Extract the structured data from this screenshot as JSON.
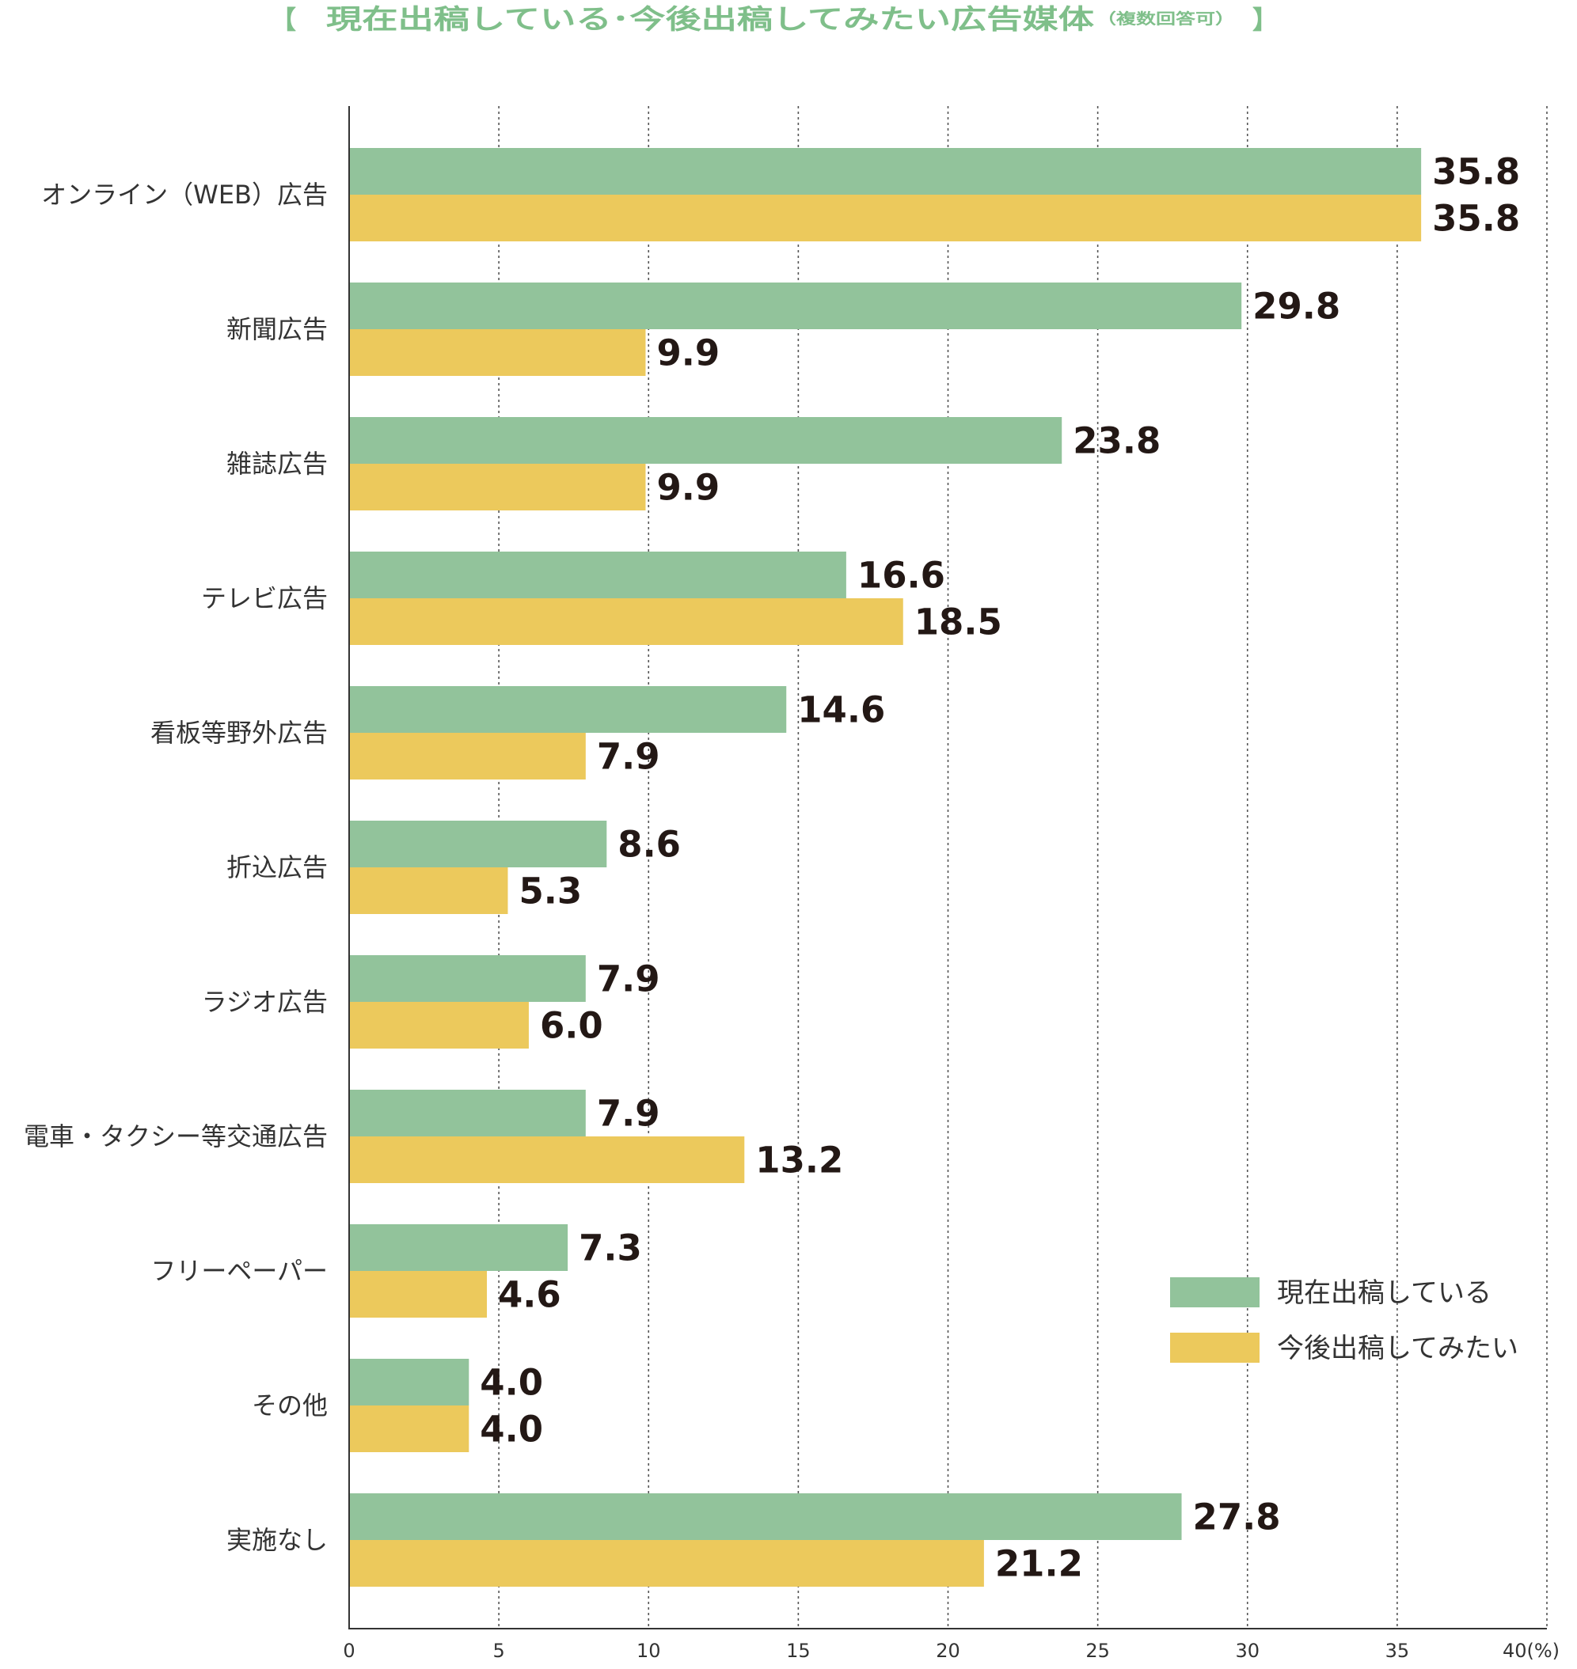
{
  "colors": {
    "title": "#7fbf8a",
    "current_series": "#92c39b",
    "future_series": "#ecc95c",
    "axis": "#333333",
    "grid": "#555555",
    "label_text": "#333333",
    "value_text": "#231815"
  },
  "chart_data": {
    "type": "bar",
    "orientation": "horizontal",
    "title": {
      "open_bracket": "【",
      "main": "現在出稿している･今後出稿してみたい広告媒体",
      "note": "（複数回答可）",
      "close_bracket": "】"
    },
    "categories": [
      "オンライン（WEB）広告",
      "新聞広告",
      "雑誌広告",
      "テレビ広告",
      "看板等野外広告",
      "折込広告",
      "ラジオ広告",
      "電車・タクシー等交通広告",
      "フリーペーパー",
      "その他",
      "実施なし"
    ],
    "series": [
      {
        "name": "現在出稿している",
        "values": [
          35.8,
          29.8,
          23.8,
          16.6,
          14.6,
          8.6,
          7.9,
          7.9,
          7.3,
          4.0,
          27.8
        ],
        "labels": [
          "35.8",
          "29.8",
          "23.8",
          "16.6",
          "14.6",
          "8.6",
          "7.9",
          "7.9",
          "7.3",
          "4.0",
          "27.8"
        ]
      },
      {
        "name": "今後出稿してみたい",
        "values": [
          35.8,
          9.9,
          9.9,
          18.5,
          7.9,
          5.3,
          6.0,
          13.2,
          4.6,
          4.0,
          21.2
        ],
        "labels": [
          "35.8",
          "9.9",
          "9.9",
          "18.5",
          "7.9",
          "5.3",
          "6.0",
          "13.2",
          "4.6",
          "4.0",
          "21.2"
        ]
      }
    ],
    "xlim": [
      0,
      40
    ],
    "xticks": [
      0,
      5,
      10,
      15,
      20,
      25,
      30,
      35,
      40
    ],
    "xtick_labels": [
      "0",
      "5",
      "10",
      "15",
      "20",
      "25",
      "30",
      "35",
      "40(%)"
    ],
    "grid": "vertical-dotted",
    "legend_position": "bottom-right",
    "xlabel": "",
    "ylabel": ""
  }
}
